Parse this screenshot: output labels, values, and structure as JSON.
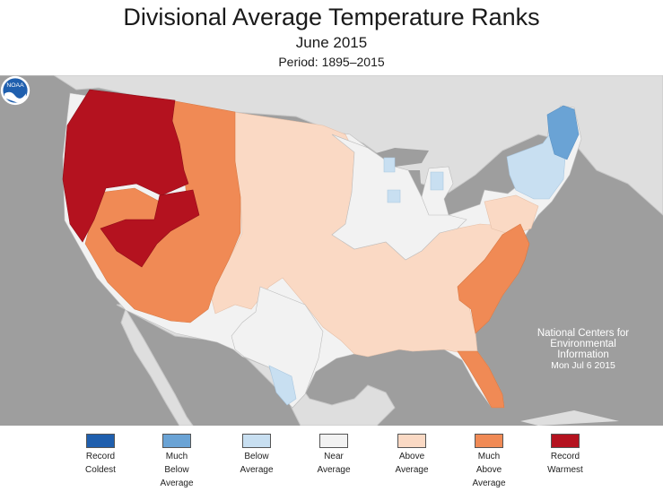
{
  "header": {
    "title": "Divisional Average Temperature Ranks",
    "subtitle": "June 2015",
    "period": "Period: 1895–2015"
  },
  "map": {
    "regions": [
      {
        "name": "pacific-northwest",
        "rank": "record-warmest"
      },
      {
        "name": "california-nevada-west",
        "rank": "record-warmest"
      },
      {
        "name": "utah",
        "rank": "record-warmest"
      },
      {
        "name": "northern-rockies",
        "rank": "much-above"
      },
      {
        "name": "southwest",
        "rank": "much-above"
      },
      {
        "name": "southeast-atlantic",
        "rank": "much-above"
      },
      {
        "name": "florida",
        "rank": "much-above"
      },
      {
        "name": "great-plains",
        "rank": "above"
      },
      {
        "name": "south-central",
        "rank": "above"
      },
      {
        "name": "midwest",
        "rank": "near"
      },
      {
        "name": "new-england",
        "rank": "below"
      },
      {
        "name": "maine-north",
        "rank": "much-below"
      }
    ]
  },
  "logo": {
    "text": "NOAA"
  },
  "attribution": {
    "line1": "National Centers for",
    "line2": "Environmental",
    "line3": "Information",
    "date": "Mon Jul  6 2015"
  },
  "legend": {
    "items": [
      {
        "line1": "Record",
        "line2": "Coldest",
        "line3": "",
        "color": "#1f5fae"
      },
      {
        "line1": "Much",
        "line2": "Below",
        "line3": "Average",
        "color": "#6aa3d5"
      },
      {
        "line1": "Below",
        "line2": "Average",
        "line3": "",
        "color": "#c8dff1"
      },
      {
        "line1": "Near",
        "line2": "Average",
        "line3": "",
        "color": "#f2f2f2"
      },
      {
        "line1": "Above",
        "line2": "Average",
        "line3": "",
        "color": "#fad9c4"
      },
      {
        "line1": "Much",
        "line2": "Above",
        "line3": "Average",
        "color": "#f08a55"
      },
      {
        "line1": "Record",
        "line2": "Warmest",
        "line3": "",
        "color": "#b4121f"
      }
    ]
  }
}
